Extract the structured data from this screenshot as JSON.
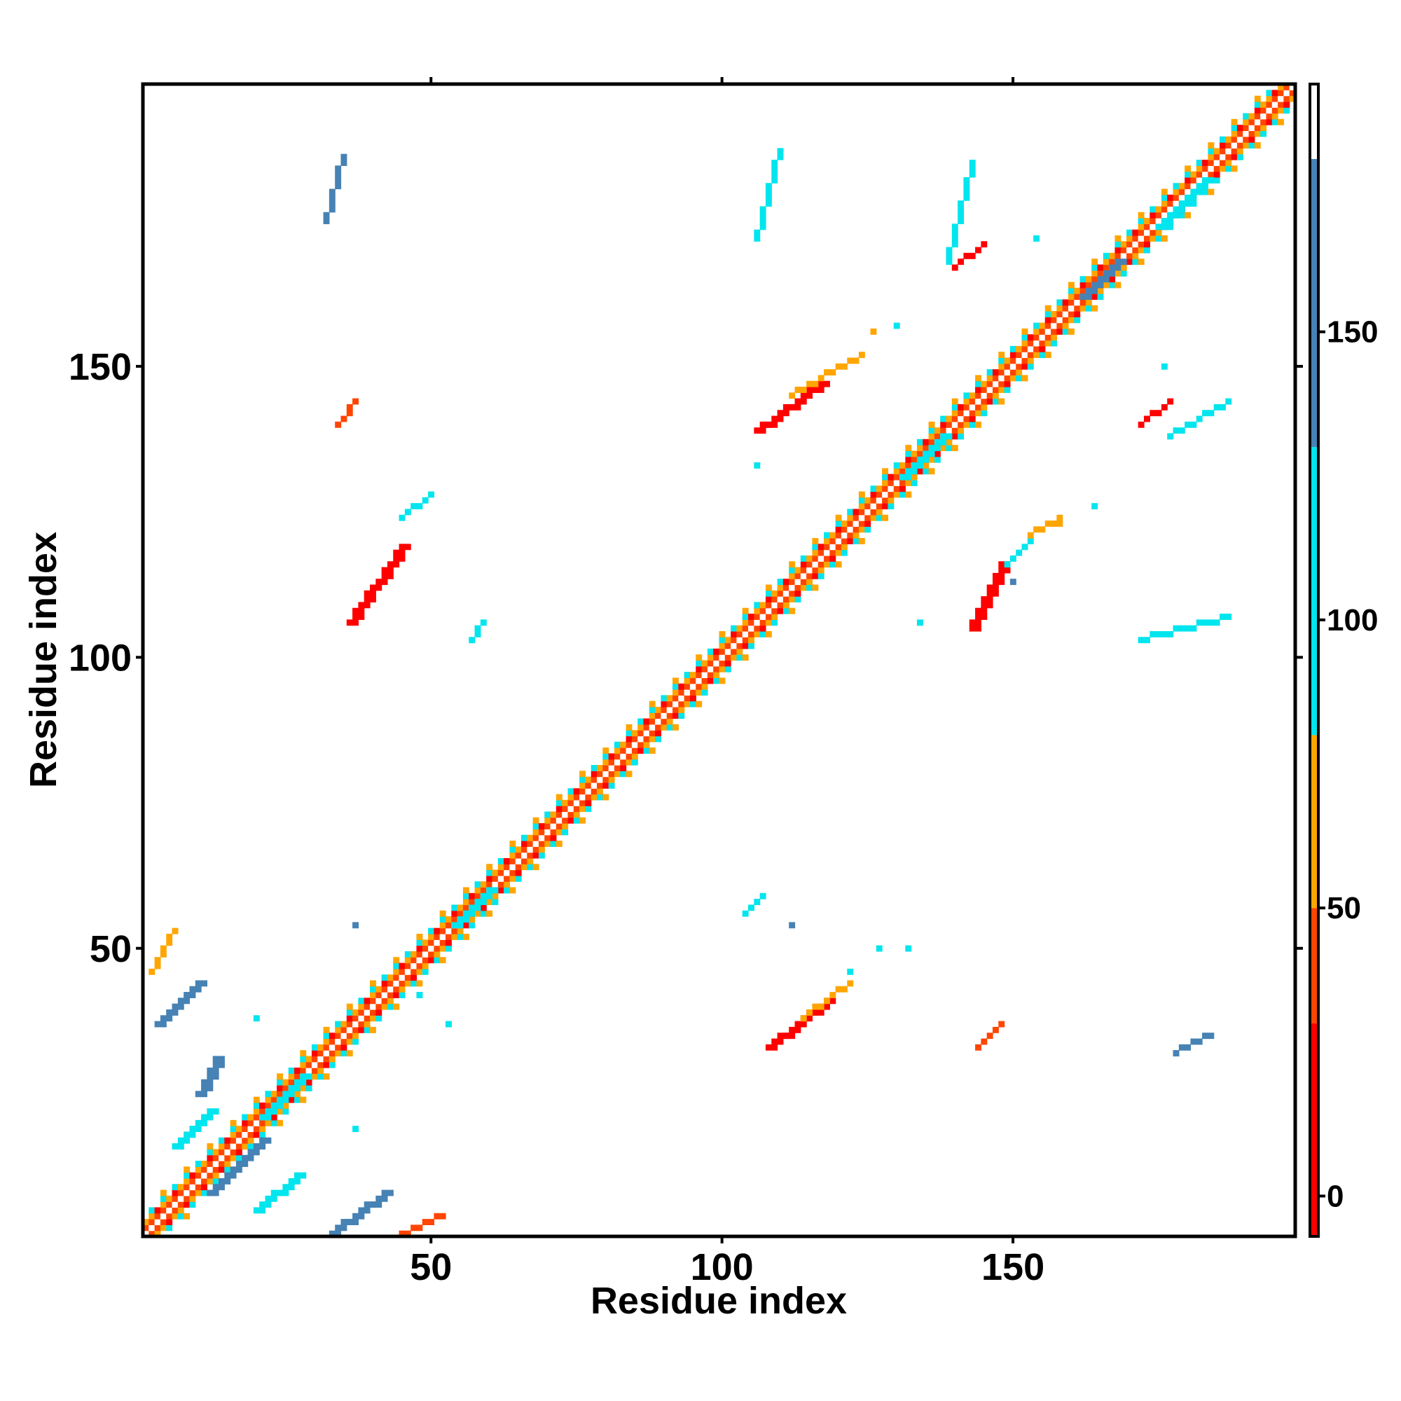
{
  "chart_data": {
    "type": "heatmap",
    "title": "",
    "xlabel": "Residue index",
    "ylabel": "Residue index",
    "xlim": [
      1,
      198
    ],
    "ylim": [
      1,
      198
    ],
    "x_ticks": [
      50,
      100,
      150
    ],
    "y_ticks": [
      50,
      100,
      150
    ],
    "colorbar": {
      "ticks": [
        0,
        50,
        100,
        150
      ],
      "range": [
        -7,
        193
      ],
      "segments": [
        {
          "from": -7,
          "to": 30,
          "color": "#ff0000"
        },
        {
          "from": 30,
          "to": 50,
          "color": "#ff4500"
        },
        {
          "from": 50,
          "to": 80,
          "color": "#ffa500"
        },
        {
          "from": 80,
          "to": 130,
          "color": "#00e5ee"
        },
        {
          "from": 130,
          "to": 180,
          "color": "#4682b4"
        },
        {
          "from": 180,
          "to": 193,
          "color": "#ffffff"
        }
      ]
    },
    "grid": false,
    "symmetric": true,
    "diagonal": {
      "from": 1,
      "to": 198
    },
    "segments": [
      {
        "x": [
          36,
          45
        ],
        "y": [
          106,
          119
        ],
        "value": 20,
        "width": 2
      },
      {
        "x": [
          34,
          37
        ],
        "y": [
          140,
          144
        ],
        "value": 40,
        "width": 1
      },
      {
        "x": [
          45,
          50
        ],
        "y": [
          124,
          128
        ],
        "value": 100,
        "width": 1
      },
      {
        "x": [
          57,
          59
        ],
        "y": [
          103,
          106
        ],
        "value": 100,
        "width": 1
      },
      {
        "x": [
          32,
          35
        ],
        "y": [
          175,
          186
        ],
        "value": 140,
        "width": 1
      },
      {
        "x": [
          106,
          117
        ],
        "y": [
          139,
          147
        ],
        "value": 20,
        "width": 2
      },
      {
        "x": [
          112,
          124
        ],
        "y": [
          145,
          152
        ],
        "value": 60,
        "width": 1
      },
      {
        "x": [
          106,
          110
        ],
        "y": [
          172,
          187
        ],
        "value": 100,
        "width": 1
      },
      {
        "x": [
          139,
          143
        ],
        "y": [
          168,
          185
        ],
        "value": 100,
        "width": 1
      },
      {
        "x": [
          140,
          145
        ],
        "y": [
          167,
          171
        ],
        "value": 20,
        "width": 1
      },
      {
        "x": [
          143,
          148
        ],
        "y": [
          105,
          116
        ],
        "value": 20,
        "width": 2
      },
      {
        "x": [
          149,
          153
        ],
        "y": [
          116,
          120
        ],
        "value": 100,
        "width": 1
      },
      {
        "x": [
          153,
          158
        ],
        "y": [
          121,
          124
        ],
        "value": 60,
        "width": 1
      },
      {
        "x": [
          172,
          187
        ],
        "y": [
          103,
          107
        ],
        "value": 100,
        "width": 1
      },
      {
        "x": [
          172,
          177
        ],
        "y": [
          140,
          144
        ],
        "value": 20,
        "width": 1
      },
      {
        "x": [
          177,
          187
        ],
        "y": [
          138,
          144
        ],
        "value": 100,
        "width": 1
      },
      {
        "x": [
          108,
          118
        ],
        "y": [
          33,
          41
        ],
        "value": 20,
        "width": 2
      },
      {
        "x": [
          114,
          122
        ],
        "y": [
          38,
          44
        ],
        "value": 60,
        "width": 1
      },
      {
        "x": [
          104,
          107
        ],
        "y": [
          56,
          59
        ],
        "value": 100,
        "width": 1
      },
      {
        "x": [
          144,
          148
        ],
        "y": [
          33,
          37
        ],
        "value": 40,
        "width": 1
      },
      {
        "x": [
          178,
          184
        ],
        "y": [
          32,
          35
        ],
        "value": 140,
        "width": 1
      },
      {
        "x": [
          3,
          10
        ],
        "y": [
          37,
          44
        ],
        "value": 140,
        "width": 2
      },
      {
        "x": [
          10,
          13
        ],
        "y": [
          25,
          31
        ],
        "value": 140,
        "width": 2
      },
      {
        "x": [
          6,
          12
        ],
        "y": [
          16,
          22
        ],
        "value": 100,
        "width": 2
      },
      {
        "x": [
          2,
          6
        ],
        "y": [
          46,
          53
        ],
        "value": 60,
        "width": 1
      },
      {
        "x": [
          20,
          27
        ],
        "y": [
          5,
          11
        ],
        "value": 100,
        "width": 2
      },
      {
        "x": [
          33,
          42
        ],
        "y": [
          1,
          8
        ],
        "value": 140,
        "width": 2
      },
      {
        "x": [
          45,
          52
        ],
        "y": [
          1,
          4
        ],
        "value": 40,
        "width": 1
      },
      {
        "x": [
          12,
          21
        ],
        "y": [
          8,
          17
        ],
        "value": 140,
        "width": 2
      },
      {
        "x": [
          21,
          28
        ],
        "y": [
          21,
          28
        ],
        "value": 100,
        "width": 2
      },
      {
        "x": [
          54,
          60
        ],
        "y": [
          54,
          60
        ],
        "value": 100,
        "width": 2
      },
      {
        "x": [
          131,
          138
        ],
        "y": [
          131,
          138
        ],
        "value": 100,
        "width": 2
      },
      {
        "x": [
          162,
          168
        ],
        "y": [
          162,
          168
        ],
        "value": 140,
        "width": 2
      },
      {
        "x": [
          175,
          183
        ],
        "y": [
          174,
          182
        ],
        "value": 100,
        "width": 2
      }
    ],
    "dots": [
      {
        "x": 20,
        "y": 38,
        "value": 100
      },
      {
        "x": 37,
        "y": 19,
        "value": 100
      },
      {
        "x": 37,
        "y": 54,
        "value": 140
      },
      {
        "x": 48,
        "y": 42,
        "value": 100
      },
      {
        "x": 53,
        "y": 37,
        "value": 100
      },
      {
        "x": 112,
        "y": 54,
        "value": 140
      },
      {
        "x": 127,
        "y": 50,
        "value": 100
      },
      {
        "x": 132,
        "y": 50,
        "value": 100
      },
      {
        "x": 122,
        "y": 46,
        "value": 100
      },
      {
        "x": 164,
        "y": 126,
        "value": 100
      },
      {
        "x": 158,
        "y": 123,
        "value": 60
      },
      {
        "x": 176,
        "y": 150,
        "value": 100
      },
      {
        "x": 126,
        "y": 156,
        "value": 60
      },
      {
        "x": 130,
        "y": 157,
        "value": 100
      },
      {
        "x": 154,
        "y": 172,
        "value": 100
      },
      {
        "x": 178,
        "y": 32,
        "value": 140
      },
      {
        "x": 106,
        "y": 133,
        "value": 100
      },
      {
        "x": 134,
        "y": 106,
        "value": 100
      },
      {
        "x": 150,
        "y": 113,
        "value": 140
      }
    ]
  }
}
